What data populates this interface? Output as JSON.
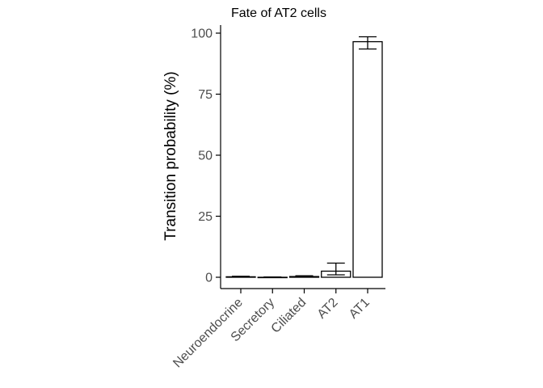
{
  "chart_data": {
    "type": "bar",
    "title": "Fate of AT2 cells",
    "xlabel": "",
    "ylabel": "Transition probability (%)",
    "categories": [
      "Neuroendocrine",
      "Secretory",
      "Ciliated",
      "AT2",
      "AT1"
    ],
    "values": [
      0.2,
      0.0,
      0.3,
      2.5,
      96.5
    ],
    "error_low": [
      0.1,
      0.0,
      0.1,
      1.0,
      93.5
    ],
    "error_high": [
      0.4,
      0.1,
      0.6,
      5.8,
      98.5
    ],
    "ylim": [
      -4,
      103
    ],
    "yticks": [
      0,
      25,
      50,
      75,
      100
    ],
    "grid": false,
    "colors": {
      "bar_fill": "#ffffff",
      "bar_stroke": "#000000",
      "tick_text": "#4d4d4d",
      "title_text": "#000000"
    }
  }
}
